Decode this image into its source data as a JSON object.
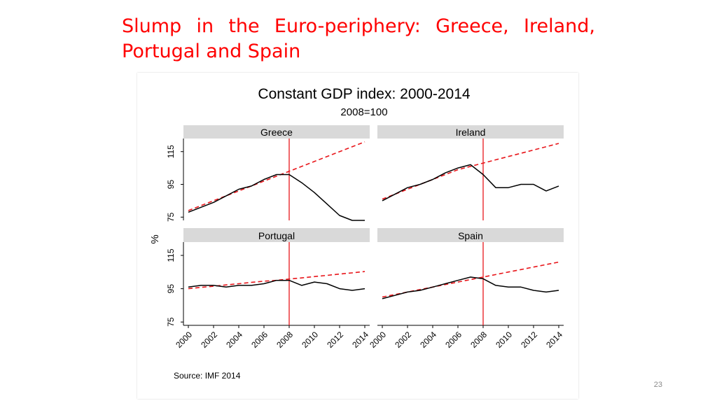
{
  "slide": {
    "title": "Slump in the Euro-periphery: Greece, Ireland, Portugal and Spain",
    "page_number": "23"
  },
  "colors": {
    "title": "#ff0000",
    "actual_line": "#000000",
    "trend_line": "#e8161b",
    "marker_2008": "#e8161b",
    "panel_header": "#d9d9d9"
  },
  "chart_data": {
    "type": "line",
    "title": "Constant GDP index: 2000-2014",
    "subtitle": "2008=100",
    "ylabel": "%",
    "source": "Source: IMF 2014",
    "x": [
      2000,
      2001,
      2002,
      2003,
      2004,
      2005,
      2006,
      2007,
      2008,
      2009,
      2010,
      2011,
      2012,
      2013,
      2014
    ],
    "xticks": [
      2000,
      2002,
      2004,
      2006,
      2008,
      2010,
      2012,
      2014
    ],
    "yticks": [
      75,
      95,
      115
    ],
    "ylim": [
      73,
      123
    ],
    "xlim": [
      2000,
      2014
    ],
    "vline": 2008,
    "panels": [
      {
        "name": "Greece",
        "actual": [
          78,
          81,
          84,
          88,
          92,
          94,
          98,
          101,
          101,
          96,
          90,
          83,
          76,
          73,
          73
        ],
        "trend": [
          79,
          82,
          85,
          88,
          91,
          94,
          97,
          100,
          103,
          106,
          109,
          112,
          115,
          118,
          121
        ]
      },
      {
        "name": "Ireland",
        "actual": [
          85,
          89,
          93,
          95,
          98,
          102,
          105,
          107,
          101,
          93,
          93,
          95,
          95,
          91,
          94
        ],
        "trend": [
          86,
          89,
          92,
          95,
          98,
          101,
          104,
          106,
          108,
          110,
          112,
          114,
          116,
          118,
          120
        ]
      },
      {
        "name": "Portugal",
        "actual": [
          96,
          97,
          97,
          96,
          97,
          97,
          98,
          100,
          100,
          97,
          99,
          98,
          95,
          94,
          95
        ],
        "trend": [
          95,
          95.8,
          96.5,
          97.3,
          98,
          98.8,
          99.5,
          100,
          100.8,
          101.5,
          102.3,
          103,
          103.8,
          104.5,
          105.3
        ]
      },
      {
        "name": "Spain",
        "actual": [
          89,
          91,
          93,
          94,
          96,
          98,
          100,
          102,
          101,
          97,
          96,
          96,
          94,
          93,
          94
        ],
        "trend": [
          90,
          91.5,
          93,
          94.5,
          96,
          97.5,
          99,
          100.5,
          102,
          103.5,
          105,
          106.5,
          108,
          109.5,
          111
        ]
      }
    ]
  }
}
